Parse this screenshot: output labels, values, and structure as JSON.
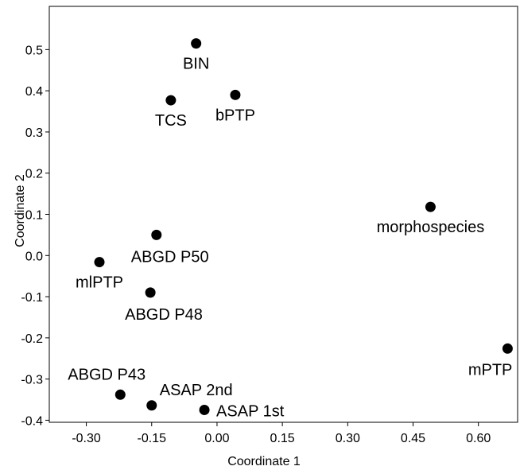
{
  "chart_data": {
    "type": "scatter",
    "xlabel": "Coordinate 1",
    "ylabel": "Coordinate 2",
    "xlim": [
      -0.385,
      0.69
    ],
    "ylim": [
      -0.405,
      0.605
    ],
    "x_ticks": [
      {
        "value": -0.3,
        "label": "-0.30"
      },
      {
        "value": -0.15,
        "label": "-0.15"
      },
      {
        "value": 0.0,
        "label": "0.00"
      },
      {
        "value": 0.15,
        "label": "0.15"
      },
      {
        "value": 0.3,
        "label": "0.30"
      },
      {
        "value": 0.45,
        "label": "0.45"
      },
      {
        "value": 0.6,
        "label": "0.60"
      }
    ],
    "y_ticks": [
      {
        "value": 0.5,
        "label": "0.5"
      },
      {
        "value": 0.4,
        "label": "0.4"
      },
      {
        "value": 0.3,
        "label": "0.3"
      },
      {
        "value": 0.2,
        "label": "0.2"
      },
      {
        "value": 0.1,
        "label": "0.1"
      },
      {
        "value": 0.0,
        "label": "0.0"
      },
      {
        "value": -0.1,
        "label": "-0.1"
      },
      {
        "value": -0.2,
        "label": "-0.2"
      },
      {
        "value": -0.3,
        "label": "-0.3"
      },
      {
        "value": -0.4,
        "label": "-0.4"
      }
    ],
    "points": [
      {
        "label": "BIN",
        "x": -0.048,
        "y": 0.515,
        "label_pos": "below"
      },
      {
        "label": "bPTP",
        "x": 0.042,
        "y": 0.39,
        "label_pos": "below"
      },
      {
        "label": "TCS",
        "x": -0.106,
        "y": 0.377,
        "label_pos": "below"
      },
      {
        "label": "morphospecies",
        "x": 0.49,
        "y": 0.118,
        "label_pos": "below"
      },
      {
        "label": "ABGD P50",
        "x": -0.139,
        "y": 0.05,
        "label_pos": "below-right"
      },
      {
        "label": "mlPTP",
        "x": -0.27,
        "y": -0.016,
        "label_pos": "below"
      },
      {
        "label": "ABGD P48",
        "x": -0.153,
        "y": -0.09,
        "label_pos": "below-right"
      },
      {
        "label": "mPTP",
        "x": 0.667,
        "y": -0.226,
        "label_pos": "below-left"
      },
      {
        "label": "ABGD P43",
        "x": -0.222,
        "y": -0.338,
        "label_pos": "above-left"
      },
      {
        "label": "ASAP 2nd",
        "x": -0.15,
        "y": -0.364,
        "label_pos": "above-right"
      },
      {
        "label": "ASAP 1st",
        "x": -0.029,
        "y": -0.375,
        "label_pos": "right"
      }
    ]
  }
}
